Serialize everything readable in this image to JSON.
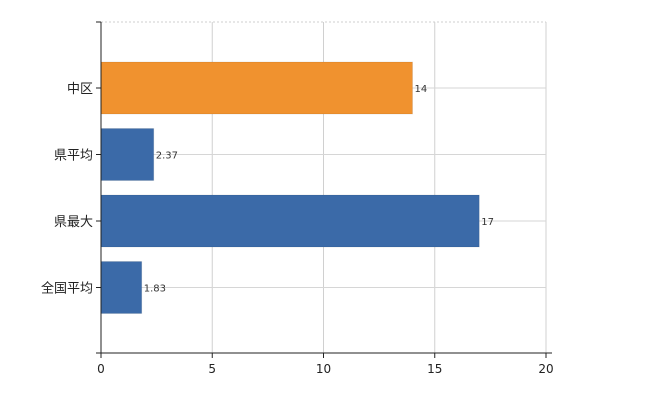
{
  "chart_data": {
    "type": "bar",
    "orientation": "horizontal",
    "categories": [
      "中区",
      "県平均",
      "県最大",
      "全国平均"
    ],
    "values": [
      14,
      2.37,
      17,
      1.83
    ],
    "value_labels": [
      "14",
      "2.37",
      "17",
      "1.83"
    ],
    "bar_colors": [
      "#f0922f",
      "#3b6aa8",
      "#3b6aa8",
      "#3b6aa8"
    ],
    "xlim": [
      0,
      20
    ],
    "xticks": [
      0,
      5,
      10,
      15,
      20
    ],
    "grid": true,
    "legend": "none"
  }
}
